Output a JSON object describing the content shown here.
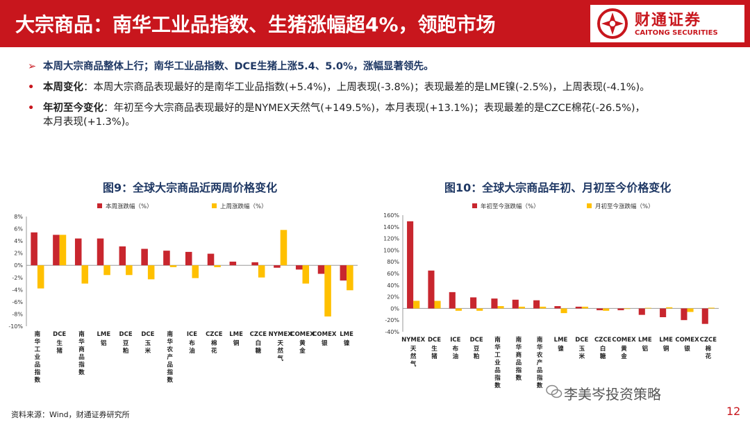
{
  "header": {
    "title": "大宗商品：南华工业品指数、生猪涨幅超4%，领跑市场",
    "logo_cn": "财通证券",
    "logo_en": "CAITONG SECURITIES"
  },
  "bullets": {
    "b1": "本周大宗商品整体上行；南华工业品指数、DCE生猪上涨5.4、5.0%，涨幅显著领先。",
    "b2_head": "本周变化",
    "b2_body": "：本周大宗商品表现最好的是南华工业品指数(+5.4%)，上周表现(-3.8%)；表现最差的是LME镍(-2.5%)，上周表现(-4.1%)。",
    "b3_head": "年初至今变化",
    "b3_body": "：年初至今大宗商品表现最好的是NYMEX天然气(+149.5%)，本月表现(+13.1%)；表现最差的是CZCE棉花(-26.5%)，",
    "b3_cont": "本月表现(+1.3%)。"
  },
  "footer": {
    "source": "资料来源：Wind，财通证券研究所",
    "watermark": "李美岑投资策略",
    "page": "12"
  },
  "colors": {
    "red": "#c8262e",
    "yellow": "#ffc000",
    "brand": "#c8161d",
    "title_blue": "#1f3864"
  },
  "chart_data": [
    {
      "type": "bar",
      "title": "图9：全球大宗商品近两周价格变化",
      "categories": [
        "南华工业品指数",
        "DCE生猪",
        "南华商品指数",
        "LME铝",
        "DCE豆粕",
        "DCE玉米",
        "南华农产品指数",
        "ICE布油",
        "CZCE棉花",
        "LME铜",
        "CZCE白糖",
        "NYMEX天然气",
        "COMEX黄金",
        "COMEX银",
        "LME镍"
      ],
      "series": [
        {
          "name": "本周涨跌幅（%）",
          "values": [
            5.4,
            5.0,
            4.4,
            4.4,
            3.1,
            2.7,
            2.4,
            2.2,
            1.9,
            0.6,
            0.5,
            -0.4,
            -0.7,
            -1.4,
            -2.5
          ]
        },
        {
          "name": "上周涨跌幅（%）",
          "values": [
            -3.8,
            5.0,
            -3.0,
            -1.6,
            -1.6,
            -2.3,
            -0.3,
            -2.1,
            -0.3,
            0.0,
            -2.0,
            5.8,
            -3.0,
            -8.4,
            -4.1
          ]
        }
      ],
      "ylim": [
        -10,
        8
      ],
      "yticks": [
        "8%",
        "6%",
        "4%",
        "2%",
        "0%",
        "-2%",
        "-4%",
        "-6%",
        "-8%",
        "-10%"
      ],
      "legend": "top"
    },
    {
      "type": "bar",
      "title": "图10：全球大宗商品年初、月初至今价格变化",
      "categories": [
        "NYMEX天然气",
        "DCE生猪",
        "ICE布油",
        "DCE豆粕",
        "南华工业品指数",
        "南华商品指数",
        "南华农产品指数",
        "LME镍",
        "DCE玉米",
        "CZCE白糖",
        "COMEX黄金",
        "LME铝",
        "LME铜",
        "COMEX银",
        "CZCE棉花"
      ],
      "series": [
        {
          "name": "年初至今涨跌幅（%）",
          "values": [
            149.5,
            65,
            28,
            19,
            17,
            15,
            14,
            4,
            3,
            -3,
            -3,
            -11,
            -15,
            -20,
            -26.5
          ]
        },
        {
          "name": "月初至今涨跌幅（%）",
          "values": [
            13.1,
            13,
            -4,
            -4,
            4,
            3,
            3,
            -8,
            3,
            -4,
            -1,
            1,
            2,
            -6,
            1.3
          ]
        }
      ],
      "ylim": [
        -40,
        160
      ],
      "yticks": [
        "160%",
        "140%",
        "120%",
        "100%",
        "80%",
        "60%",
        "40%",
        "20%",
        "0%",
        "-20%",
        "-40%"
      ],
      "legend": "top"
    }
  ]
}
